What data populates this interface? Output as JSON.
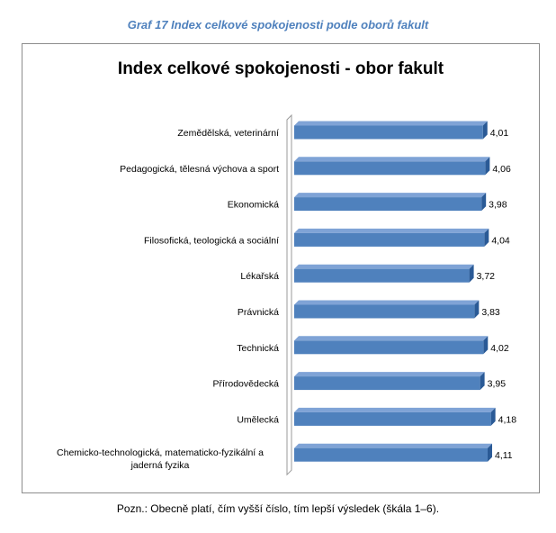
{
  "caption": "Graf 17 Index celkové spokojenosti podle oborů fakult",
  "note": "Pozn.: Obecně platí, čím vyšší číslo, tím lepší výsledek (škála 1–6).",
  "colors": {
    "bar": "#4f81bd",
    "bar_dark": "#2a5a96",
    "caption": "#4f81bd"
  },
  "chart_data": {
    "type": "bar",
    "orientation": "horizontal",
    "title": "Index celkové spokojenosti  - obor fakult",
    "categories": [
      [
        "Zemědělská, veterinární"
      ],
      [
        "Pedagogická, tělesná výchova a sport"
      ],
      [
        "Ekonomická"
      ],
      [
        "Filosofická, teologická a sociální"
      ],
      [
        "Lékařská"
      ],
      [
        "Právnická"
      ],
      [
        "Technická"
      ],
      [
        "Přírodovědecká"
      ],
      [
        "Umělecká"
      ],
      [
        "Chemicko-technologická, matematicko-fyzikální  a",
        "jaderná fyzika"
      ]
    ],
    "values": [
      4.01,
      4.06,
      3.98,
      4.04,
      3.72,
      3.83,
      4.02,
      3.95,
      4.18,
      4.11
    ],
    "value_labels": [
      "4,01",
      "4,06",
      "3,98",
      "4,04",
      "3,72",
      "3,83",
      "4,02",
      "3,95",
      "4,18",
      "4,11"
    ],
    "xlim": [
      0,
      4.55
    ],
    "grid": false,
    "legend": "none"
  }
}
